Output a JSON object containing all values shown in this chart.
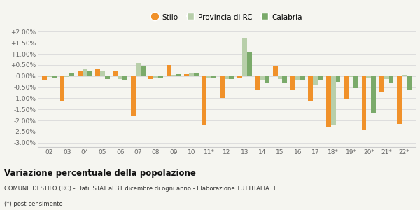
{
  "categories": [
    "02",
    "03",
    "04",
    "05",
    "06",
    "07",
    "08",
    "09",
    "10",
    "11*",
    "12",
    "13",
    "14",
    "15",
    "16",
    "17",
    "18*",
    "19*",
    "20*",
    "21*",
    "22*"
  ],
  "stilo": [
    -0.2,
    -1.1,
    0.25,
    0.3,
    0.2,
    -1.8,
    -0.15,
    0.5,
    0.1,
    -2.2,
    -1.0,
    -0.1,
    -0.65,
    0.45,
    -0.65,
    -1.1,
    -2.3,
    -1.05,
    -2.45,
    -0.75,
    -2.15
  ],
  "provincia": [
    -0.05,
    -0.05,
    0.35,
    0.2,
    -0.15,
    0.6,
    -0.1,
    0.05,
    0.15,
    -0.1,
    -0.15,
    1.7,
    -0.2,
    -0.15,
    -0.2,
    -0.4,
    -2.2,
    -0.05,
    -0.1,
    -0.15,
    0.05
  ],
  "calabria": [
    -0.1,
    0.15,
    0.2,
    -0.15,
    -0.2,
    0.45,
    -0.1,
    0.1,
    0.15,
    -0.1,
    -0.15,
    1.1,
    -0.3,
    -0.3,
    -0.2,
    -0.2,
    -0.25,
    -0.55,
    -1.65,
    -0.3,
    -0.6
  ],
  "stilo_color": "#f0912a",
  "provincia_color": "#b8cfaa",
  "calabria_color": "#7aaa6a",
  "bg_color": "#f5f5f0",
  "grid_color": "#dddddd",
  "title1": "Variazione percentuale della popolazione",
  "title2": "COMUNE DI STILO (RC) - Dati ISTAT al 31 dicembre di ogni anno - Elaborazione TUTTITALIA.IT",
  "title3": "(*) post-censimento",
  "ylim_min": -3.2,
  "ylim_max": 2.2,
  "ytick_vals": [
    -3.0,
    -2.5,
    -2.0,
    -1.5,
    -1.0,
    -0.5,
    0.0,
    0.5,
    1.0,
    1.5,
    2.0
  ],
  "ytick_labels": [
    "-3.00%",
    "-2.50%",
    "-2.00%",
    "-1.50%",
    "-1.00%",
    "-0.50%",
    "0.00%",
    "+0.50%",
    "+1.00%",
    "+1.50%",
    "+2.00%"
  ]
}
